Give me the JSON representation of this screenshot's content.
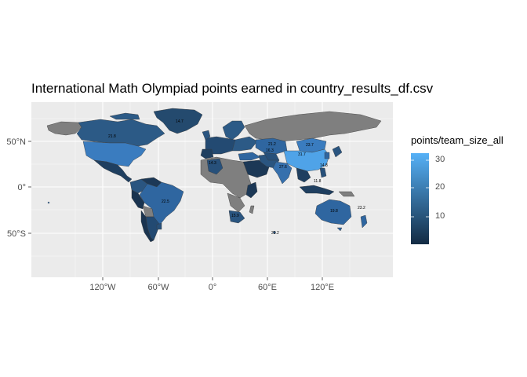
{
  "title": "International Math Olympiad points earned in country_results_df.csv",
  "legend": {
    "title": "points/team_size_all",
    "ticks": [
      "30",
      "20",
      "10"
    ],
    "colors": {
      "low": "#132B43",
      "high": "#56B1F7",
      "missing": "#7f7f7f"
    }
  },
  "axes": {
    "x_ticks": [
      "120°W",
      "60°W",
      "0°",
      "60°E",
      "120°E"
    ],
    "y_ticks": [
      "50°N",
      "0°",
      "50°S"
    ]
  },
  "map_labels": [
    {
      "text": "14.7",
      "region": "Greenland"
    },
    {
      "text": "21.8",
      "region": "Canada"
    },
    {
      "text": "23.7",
      "region": "Mongolia"
    },
    {
      "text": "21.2",
      "region": "Kazakhstan"
    },
    {
      "text": "16.3",
      "region": "Uzbekistan"
    },
    {
      "text": "31.7",
      "region": "China"
    },
    {
      "text": "27.6",
      "region": "India"
    },
    {
      "text": "14.3",
      "region": "Algeria"
    },
    {
      "text": "22.5",
      "region": "Brazil"
    },
    {
      "text": "19.8",
      "region": "Australia"
    },
    {
      "text": "23.2",
      "region": "New Zealand"
    },
    {
      "text": "23.2",
      "region": "Kerguelen"
    },
    {
      "text": "15.9",
      "region": "South Africa"
    },
    {
      "text": "11.8",
      "region": "Indonesia"
    },
    {
      "text": "14.8",
      "region": "Philippines"
    }
  ]
}
